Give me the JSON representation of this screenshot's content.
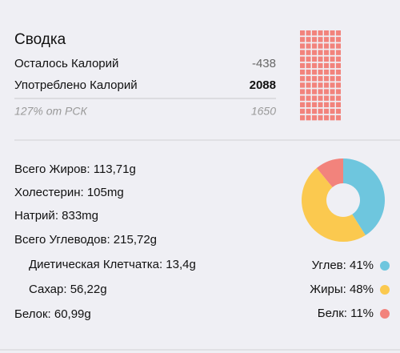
{
  "summary": {
    "title": "Сводка",
    "rows": [
      [
        "Осталось Калорий",
        "-438"
      ],
      [
        "Употреблено Калорий",
        "2088"
      ]
    ],
    "footer": [
      "127% от РСК",
      "1650"
    ]
  },
  "nutrients": [
    "Всего Жиров: 113,71g",
    "Холестерин: 105mg",
    "Натрий: 833mg",
    "Всего Углеводов: 215,72g",
    "Диетическая Клетчатка: 13,4g",
    "Сахар: 56,22g",
    "Белок: 60,99g"
  ],
  "chart_data": {
    "type": "donut",
    "values": [
      41,
      48,
      11
    ],
    "value_labels": [
      "Углев: 41%",
      "Жиры: 48%",
      "Белк: 11%"
    ],
    "colors": [
      "#6ec6de",
      "#fbc94f",
      "#f2837c"
    ]
  }
}
